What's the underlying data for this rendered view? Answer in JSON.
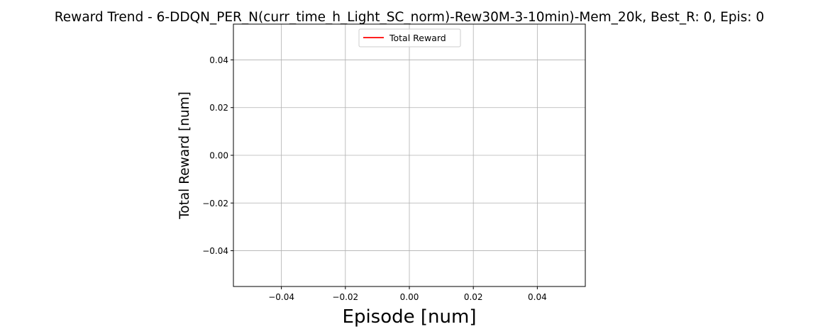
{
  "chart_data": {
    "type": "line",
    "title": "Reward Trend - 6-DDQN_PER_N(curr_time_h_Light_SC_norm)-Rew30M-3-10min)-Mem_20k, Best_R: 0, Epis: 0",
    "xlabel": "Episode [num]",
    "ylabel": "Total Reward [num]",
    "xlim": [
      -0.055,
      0.055
    ],
    "ylim": [
      -0.055,
      0.055
    ],
    "x_ticks": [
      -0.04,
      -0.02,
      0.0,
      0.02,
      0.04
    ],
    "x_tick_labels": [
      "−0.04",
      "−0.02",
      "0.00",
      "0.02",
      "0.04"
    ],
    "y_ticks": [
      -0.04,
      -0.02,
      0.0,
      0.02,
      0.04
    ],
    "y_tick_labels": [
      "−0.04",
      "−0.02",
      "0.00",
      "0.02",
      "0.04"
    ],
    "grid": true,
    "legend_position": "top-center",
    "series": [
      {
        "name": "Total Reward",
        "color": "#ff0000",
        "x": [],
        "y": []
      }
    ]
  }
}
